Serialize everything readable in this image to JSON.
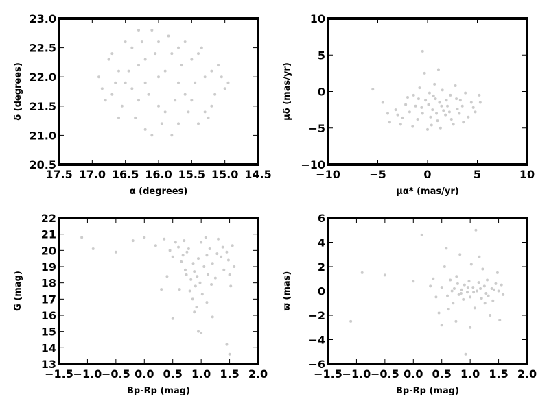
{
  "chart_data": [
    {
      "type": "scatter",
      "x_label": "α (degrees)",
      "y_label": "δ (degrees)",
      "color": "#cccccc",
      "xlim": [
        17.5,
        14.5
      ],
      "ylim": [
        20.5,
        23.0
      ],
      "xticks": [
        17.5,
        {
          "value": 17,
          "label": "17.0"
        },
        16.5,
        {
          "value": 16,
          "label": "16.0"
        },
        15.5,
        {
          "value": 15,
          "label": "15.0"
        },
        14.5
      ],
      "yticks": [
        20.5,
        {
          "value": 21,
          "label": "21.0"
        },
        21.5,
        {
          "value": 22,
          "label": "22.0"
        },
        22.5,
        {
          "value": 23,
          "label": "23.0"
        }
      ],
      "x": [
        16.9,
        16.8,
        16.7,
        16.6,
        16.5,
        16.4,
        16.3,
        16.2,
        16.1,
        16.0,
        15.9,
        15.8,
        15.7,
        15.6,
        15.5,
        15.4,
        15.3,
        15.2,
        15.1,
        15.0,
        16.85,
        16.75,
        16.65,
        16.55,
        16.45,
        16.35,
        16.25,
        16.15,
        16.05,
        15.95,
        15.85,
        15.75,
        15.65,
        15.55,
        15.45,
        15.35,
        15.25,
        15.15,
        15.05,
        14.95,
        16.3,
        16.0,
        15.7,
        16.5,
        15.6,
        16.2,
        15.9,
        16.4,
        15.5,
        16.1,
        15.8,
        16.6,
        15.3,
        16.0,
        15.4,
        16.7,
        15.2,
        16.2,
        15.7,
        16.3
      ],
      "values": [
        22.0,
        21.6,
        22.4,
        21.3,
        22.6,
        21.8,
        22.2,
        21.1,
        22.8,
        21.5,
        22.1,
        21.0,
        22.5,
        21.7,
        22.3,
        21.2,
        22.0,
        21.5,
        22.2,
        21.8,
        21.8,
        22.3,
        21.9,
        21.5,
        22.1,
        21.3,
        22.6,
        21.7,
        22.4,
        21.2,
        22.7,
        21.6,
        22.2,
        21.4,
        21.9,
        22.5,
        21.3,
        21.7,
        22.0,
        21.9,
        21.6,
        22.0,
        21.9,
        21.9,
        22.6,
        22.3,
        21.4,
        22.5,
        21.6,
        21.0,
        22.4,
        22.1,
        21.4,
        22.6,
        22.4,
        21.7,
        22.1,
        21.9,
        21.2,
        22.8
      ]
    },
    {
      "type": "scatter",
      "x_label": "μα* (mas/yr)",
      "y_label": "μδ (mas/yr)",
      "color": "#cccccc",
      "xlim": [
        -10,
        10
      ],
      "ylim": [
        -10,
        10
      ],
      "xticks": [
        {
          "value": -10,
          "label": "−10"
        },
        {
          "value": -5,
          "label": "−5"
        },
        0,
        5,
        10
      ],
      "yticks": [
        {
          "value": -10,
          "label": "−10"
        },
        {
          "value": -5,
          "label": "−5"
        },
        0,
        5,
        10
      ],
      "x": [
        -5.5,
        -4.5,
        -3.8,
        -3.2,
        -2.5,
        -2.0,
        -1.5,
        -1.2,
        -0.8,
        -0.5,
        -0.2,
        0.0,
        0.2,
        0.5,
        0.7,
        1.0,
        1.2,
        1.5,
        1.8,
        2.0,
        2.3,
        2.6,
        2.9,
        3.2,
        3.5,
        3.8,
        4.1,
        4.4,
        4.8,
        5.2,
        -3.0,
        -2.2,
        -1.0,
        0.3,
        0.8,
        1.6,
        2.4,
        3.0,
        -0.6,
        0.1,
        -1.8,
        1.3,
        2.8,
        -0.3,
        1.1,
        -0.5,
        3.6,
        4.6,
        -4.0,
        0.6,
        1.9,
        -1.4,
        0.4,
        2.2,
        -2.7,
        3.3,
        0.9,
        -0.9,
        1.4,
        5.3
      ],
      "values": [
        0.3,
        -1.5,
        -4.2,
        -2.5,
        -3.6,
        -0.8,
        -4.8,
        -2.0,
        0.5,
        -3.0,
        -1.2,
        -5.2,
        -0.2,
        -2.5,
        1.0,
        -4.0,
        -1.5,
        0.2,
        -3.2,
        -2.0,
        -0.5,
        -4.5,
        -1.0,
        -3.0,
        -2.0,
        -0.2,
        -3.5,
        -1.5,
        -2.8,
        -0.5,
        -3.2,
        -1.8,
        -3.8,
        -3.5,
        -1.0,
        -2.6,
        -3.8,
        -2.4,
        -2.2,
        -1.8,
        -2.8,
        -5.0,
        0.8,
        2.5,
        3.0,
        5.5,
        -4.2,
        -2.2,
        -3.0,
        -0.6,
        -1.2,
        -0.5,
        -4.6,
        -2.8,
        -4.5,
        -1.2,
        -3.0,
        -1.0,
        -2.0,
        -1.5
      ]
    },
    {
      "type": "scatter",
      "x_label": "Bp-Rp (mag)",
      "y_label": "G (mag)",
      "color": "#cccccc",
      "xlim": [
        -1.5,
        2.0
      ],
      "ylim": [
        13,
        22
      ],
      "xticks": [
        {
          "value": -1.5,
          "label": "−1.5"
        },
        {
          "value": -1,
          "label": "−1.0"
        },
        {
          "value": -0.5,
          "label": "−0.5"
        },
        {
          "value": 0,
          "label": "0.0"
        },
        0.5,
        {
          "value": 1,
          "label": "1.0"
        },
        1.5,
        {
          "value": 2,
          "label": "2.0"
        }
      ],
      "yticks": [
        13,
        14,
        15,
        16,
        17,
        18,
        19,
        20,
        21,
        22
      ],
      "x": [
        -1.1,
        -0.9,
        -0.5,
        -0.2,
        0.0,
        0.2,
        0.35,
        0.45,
        0.5,
        0.55,
        0.6,
        0.65,
        0.7,
        0.72,
        0.75,
        0.8,
        0.82,
        0.85,
        0.88,
        0.9,
        0.92,
        0.95,
        0.98,
        1.0,
        1.02,
        1.05,
        1.1,
        1.12,
        1.15,
        1.2,
        1.25,
        1.3,
        1.35,
        1.4,
        1.45,
        1.5,
        1.55,
        1.58,
        0.78,
        0.68,
        0.86,
        0.93,
        1.08,
        1.18,
        1.28,
        1.38,
        1.48,
        0.62,
        0.95,
        1.0,
        1.5,
        1.45,
        0.5,
        1.2,
        0.88,
        0.4,
        0.3,
        1.52,
        1.1,
        0.74
      ],
      "values": [
        20.8,
        20.1,
        19.9,
        20.6,
        20.8,
        20.3,
        20.7,
        20.0,
        19.6,
        20.5,
        20.2,
        19.3,
        20.6,
        18.8,
        19.9,
        17.5,
        18.2,
        17.0,
        18.7,
        17.8,
        16.5,
        19.5,
        18.0,
        20.5,
        17.3,
        19.0,
        16.8,
        18.5,
        20.1,
        19.2,
        18.3,
        20.7,
        19.6,
        18.8,
        19.9,
        18.5,
        20.3,
        19.0,
        20.1,
        19.7,
        19.2,
        18.4,
        20.8,
        17.9,
        19.8,
        20.2,
        19.4,
        17.6,
        15.0,
        14.9,
        13.6,
        14.2,
        15.8,
        15.9,
        16.2,
        18.4,
        17.6,
        17.8,
        19.7,
        18.5
      ]
    },
    {
      "type": "scatter",
      "x_label": "Bp-Rp (mag)",
      "y_label": "ϖ (mas)",
      "color": "#cccccc",
      "xlim": [
        -1.5,
        2.0
      ],
      "ylim": [
        -6,
        6
      ],
      "xticks": [
        {
          "value": -1.5,
          "label": "−1.5"
        },
        {
          "value": -1,
          "label": "−1.0"
        },
        {
          "value": -0.5,
          "label": "−0.5"
        },
        {
          "value": 0,
          "label": "0.0"
        },
        0.5,
        {
          "value": 1,
          "label": "1.0"
        },
        1.5,
        {
          "value": 2,
          "label": "2.0"
        }
      ],
      "yticks": [
        {
          "value": -6,
          "label": "−6"
        },
        {
          "value": -4,
          "label": "−4"
        },
        {
          "value": -2,
          "label": "−2"
        },
        0,
        2,
        4,
        6
      ],
      "x": [
        -1.1,
        -0.9,
        -0.5,
        0.0,
        0.15,
        0.3,
        0.4,
        0.45,
        0.5,
        0.55,
        0.6,
        0.65,
        0.7,
        0.72,
        0.75,
        0.78,
        0.8,
        0.82,
        0.85,
        0.88,
        0.9,
        0.92,
        0.95,
        0.98,
        1.0,
        1.02,
        1.05,
        1.08,
        1.1,
        1.12,
        1.15,
        1.2,
        1.22,
        1.25,
        1.28,
        1.3,
        1.35,
        1.38,
        1.4,
        1.45,
        1.48,
        1.5,
        1.52,
        1.55,
        1.58,
        0.68,
        0.84,
        0.96,
        1.06,
        1.18,
        1.32,
        1.42,
        0.62,
        0.58,
        1.0,
        0.5,
        1.16,
        0.76,
        1.26,
        0.35
      ],
      "values": [
        -2.5,
        1.5,
        1.3,
        0.8,
        4.6,
        0.4,
        -0.5,
        -1.8,
        0.3,
        2.0,
        -0.4,
        0.9,
        -1.0,
        0.2,
        -2.5,
        0.6,
        -0.3,
        3.0,
        0.1,
        -0.7,
        0.5,
        -5.2,
        -0.1,
        0.8,
        -0.5,
        2.2,
        0.3,
        -1.4,
        5.0,
        0.0,
        0.7,
        -0.6,
        1.8,
        0.4,
        -0.2,
        0.9,
        -2.0,
        0.2,
        -0.8,
        0.6,
        1.5,
        0.0,
        -2.4,
        0.5,
        -0.3,
        0.0,
        -0.2,
        0.3,
        -0.1,
        0.2,
        -0.4,
        0.1,
        -1.5,
        3.5,
        -3.0,
        -2.8,
        2.8,
        1.2,
        -1.0,
        1.0
      ]
    }
  ]
}
